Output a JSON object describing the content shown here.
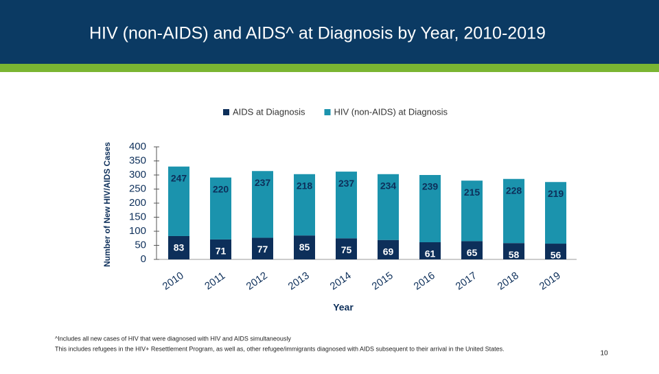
{
  "chart_data": {
    "type": "bar",
    "stacked": true,
    "title": "HIV (non-AIDS) and AIDS^ at Diagnosis by Year, 2010-2019",
    "x_label": "Year",
    "y_label": "Number of New HIV/AIDS Cases",
    "categories": [
      "2010",
      "2011",
      "2012",
      "2013",
      "2014",
      "2015",
      "2016",
      "2017",
      "2018",
      "2019"
    ],
    "series": [
      {
        "name": "AIDS at Diagnosis",
        "color": "#0d2f5a",
        "label_color": "#ffffff",
        "values": [
          83,
          71,
          77,
          85,
          75,
          69,
          61,
          65,
          58,
          56
        ]
      },
      {
        "name": "HIV (non-AIDS) at Diagnosis",
        "color": "#1b93ad",
        "label_color": "#0d2f5a",
        "values": [
          247,
          220,
          237,
          218,
          237,
          234,
          239,
          215,
          228,
          219
        ]
      }
    ],
    "ylim": [
      0,
      400
    ],
    "yticks": [
      0,
      50,
      100,
      150,
      200,
      250,
      300,
      350,
      400
    ],
    "legend": "top"
  },
  "footnotes": [
    "^Includes all new cases of HIV that were diagnosed with HIV and AIDS simultaneously",
    "This includes refugees in the HIV+ Resettlement Program, as well as, other refugee/immigrants diagnosed with AIDS subsequent to their arrival in the United States."
  ],
  "page_number": "10"
}
